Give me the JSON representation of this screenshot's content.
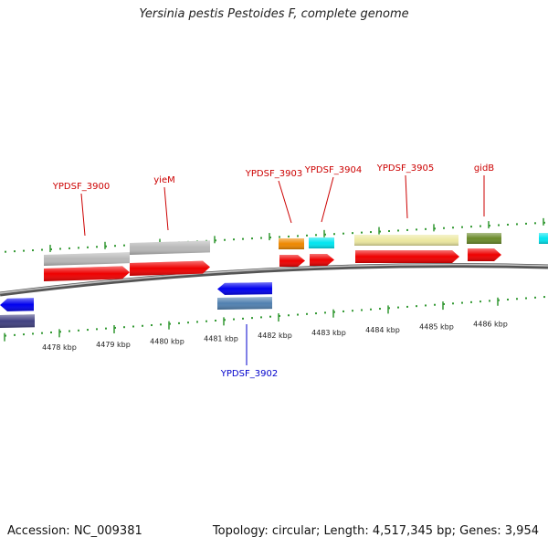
{
  "title": "Yersinia pestis Pestoides F, complete genome",
  "footer": {
    "accession": "Accession: NC_009381",
    "topology": "Topology: circular; Length: 4,517,345 bp; Genes: 3,954"
  },
  "colors": {
    "plus_label": "#cc0000",
    "minus_label": "#0000cc",
    "tick": "#339933",
    "backbone": "#808080"
  },
  "ruler_labels": [
    "4478 kbp",
    "4479 kbp",
    "4480 kbp",
    "4481 kbp",
    "4482 kbp",
    "4483 kbp",
    "4484 kbp",
    "4485 kbp",
    "4486 kbp"
  ],
  "gene_labels": [
    {
      "text": "YPDSF_3900",
      "strand": "plus"
    },
    {
      "text": "yieM",
      "strand": "plus"
    },
    {
      "text": "YPDSF_3903",
      "strand": "plus"
    },
    {
      "text": "YPDSF_3904",
      "strand": "plus"
    },
    {
      "text": "YPDSF_3905",
      "strand": "plus"
    },
    {
      "text": "gidB",
      "strand": "plus"
    },
    {
      "text": "YPDSF_3902",
      "strand": "minus"
    }
  ],
  "feature_colors": {
    "gray": "#b8b8b8",
    "red": "#ee0000",
    "orange": "#ee8800",
    "cyan": "#00e5f0",
    "khaki": "#ece8a0",
    "olive": "#6a8a2a",
    "blue": "#0000ee",
    "steel": "#5080b0",
    "slate": "#404080"
  }
}
